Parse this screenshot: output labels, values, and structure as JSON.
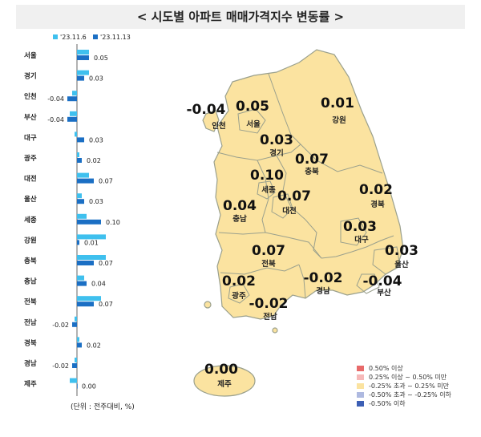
{
  "title": "< 시도별 아파트 매매가격지수 변동률 >",
  "unit_note": "(단위 : 전주대비, %)",
  "colors": {
    "prev_week": "#3fc0ee",
    "this_week": "#1b6fc4",
    "map_fill": "#fbe3a0",
    "map_border": "#9aa08d",
    "title_bg": "#f0f0f0"
  },
  "chart_data": {
    "type": "bar",
    "orientation": "horizontal",
    "categories": [
      "서울",
      "경기",
      "인천",
      "부산",
      "대구",
      "광주",
      "대전",
      "울산",
      "세종",
      "강원",
      "충북",
      "충남",
      "전북",
      "전남",
      "경북",
      "경남",
      "제주"
    ],
    "series": [
      {
        "name": "'23.11.6",
        "values": [
          0.05,
          0.05,
          -0.02,
          -0.03,
          -0.01,
          0.01,
          0.05,
          0.02,
          0.04,
          0.12,
          0.12,
          0.03,
          0.1,
          -0.01,
          0.01,
          -0.01,
          -0.03
        ]
      },
      {
        "name": "'23.11.13",
        "values": [
          0.05,
          0.03,
          -0.04,
          -0.04,
          0.03,
          0.02,
          0.07,
          0.03,
          0.1,
          0.01,
          0.07,
          0.04,
          0.07,
          -0.02,
          0.02,
          -0.02,
          0.0
        ]
      }
    ],
    "data_labels": [
      "0.05",
      "0.03",
      "-0.04",
      "-0.04",
      "0.03",
      "0.02",
      "0.07",
      "0.03",
      "0.10",
      "0.01",
      "0.07",
      "0.04",
      "0.07",
      "-0.02",
      "0.02",
      "-0.02",
      "0.00"
    ],
    "legend": "top-left"
  },
  "map": {
    "regions": [
      {
        "name": "인천",
        "value": "-0.04"
      },
      {
        "name": "서울",
        "value": "0.05"
      },
      {
        "name": "강원",
        "value": "0.01"
      },
      {
        "name": "경기",
        "value": "0.03"
      },
      {
        "name": "충북",
        "value": "0.07"
      },
      {
        "name": "세종",
        "value": "0.10"
      },
      {
        "name": "대전",
        "value": "0.07"
      },
      {
        "name": "경북",
        "value": "0.02"
      },
      {
        "name": "충남",
        "value": "0.04"
      },
      {
        "name": "대구",
        "value": "0.03"
      },
      {
        "name": "울산",
        "value": "0.03"
      },
      {
        "name": "전북",
        "value": "0.07"
      },
      {
        "name": "광주",
        "value": "0.02"
      },
      {
        "name": "경남",
        "value": "-0.02"
      },
      {
        "name": "부산",
        "value": "-0.04"
      },
      {
        "name": "전남",
        "value": "-0.02"
      },
      {
        "name": "제주",
        "value": "0.00"
      }
    ],
    "legend": [
      {
        "label": "0.50% 이상",
        "color": "#e86a6a"
      },
      {
        "label": "0.25% 이상 ~ 0.50% 미만",
        "color": "#f6b9b9"
      },
      {
        "label": "-0.25% 초과 ~ 0.25% 미만",
        "color": "#fbe3a0"
      },
      {
        "label": "-0.50% 초과 ~ -0.25% 이하",
        "color": "#aeb9e0"
      },
      {
        "label": "-0.50% 이하",
        "color": "#3c5fb5"
      }
    ]
  }
}
